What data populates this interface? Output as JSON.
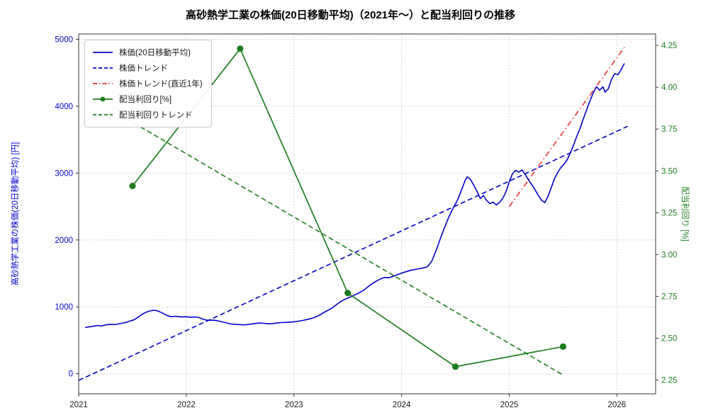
{
  "chart_data": {
    "type": "line",
    "title": "高砂熱学工業の株価(20日移動平均)（2021年～）と配当利回りの推移",
    "xlabel": "",
    "ylabel_left": "高砂熱学工業の株価(20日移動平均) [円]",
    "ylabel_right": "配当利回り [%]",
    "xlim": [
      2021.0,
      2026.36
    ],
    "ylim_left": [
      -300,
      5080
    ],
    "ylim_right": [
      2.168,
      4.318
    ],
    "grid": "dotted",
    "legend_position": "upper-left",
    "colors": {
      "blue": "#0000cd",
      "red": "#e8312a",
      "green": "#1e7d1e",
      "grid": "#c0c0c0",
      "tick": "#1a1a1a"
    },
    "x_ticks": [
      {
        "v": 2021,
        "label": "2021"
      },
      {
        "v": 2022,
        "label": "2022"
      },
      {
        "v": 2023,
        "label": "2023"
      },
      {
        "v": 2024,
        "label": "2024"
      },
      {
        "v": 2025,
        "label": "2025"
      },
      {
        "v": 2026,
        "label": "2026"
      }
    ],
    "y_ticks_left": [
      {
        "v": 0,
        "label": "0"
      },
      {
        "v": 1000,
        "label": "1000"
      },
      {
        "v": 2000,
        "label": "2000"
      },
      {
        "v": 3000,
        "label": "3000"
      },
      {
        "v": 4000,
        "label": "4000"
      },
      {
        "v": 5000,
        "label": "5000"
      }
    ],
    "y_ticks_right": [
      {
        "v": 2.25,
        "label": "2.25"
      },
      {
        "v": 2.5,
        "label": "2.50"
      },
      {
        "v": 2.75,
        "label": "2.75"
      },
      {
        "v": 3.0,
        "label": "3.00"
      },
      {
        "v": 3.25,
        "label": "3.25"
      },
      {
        "v": 3.5,
        "label": "3.50"
      },
      {
        "v": 3.75,
        "label": "3.75"
      },
      {
        "v": 4.0,
        "label": "4.00"
      },
      {
        "v": 4.25,
        "label": "4.25"
      }
    ],
    "series": [
      {
        "name": "price_ma20",
        "label": "株価(20日移動平均)",
        "axis": "left",
        "style": "solid",
        "color_key": "blue",
        "width": 1.6,
        "points": [
          [
            2021.06,
            690
          ],
          [
            2021.09,
            700
          ],
          [
            2021.12,
            705
          ],
          [
            2021.15,
            715
          ],
          [
            2021.18,
            722
          ],
          [
            2021.21,
            712
          ],
          [
            2021.24,
            726
          ],
          [
            2021.27,
            735
          ],
          [
            2021.3,
            740
          ],
          [
            2021.33,
            733
          ],
          [
            2021.36,
            742
          ],
          [
            2021.4,
            755
          ],
          [
            2021.44,
            768
          ],
          [
            2021.48,
            790
          ],
          [
            2021.52,
            810
          ],
          [
            2021.56,
            855
          ],
          [
            2021.6,
            900
          ],
          [
            2021.64,
            928
          ],
          [
            2021.68,
            945
          ],
          [
            2021.71,
            950
          ],
          [
            2021.74,
            935
          ],
          [
            2021.78,
            905
          ],
          [
            2021.82,
            872
          ],
          [
            2021.86,
            852
          ],
          [
            2021.9,
            860
          ],
          [
            2021.93,
            853
          ],
          [
            2021.96,
            848
          ],
          [
            2022.0,
            852
          ],
          [
            2022.04,
            845
          ],
          [
            2022.08,
            850
          ],
          [
            2022.12,
            838
          ],
          [
            2022.16,
            812
          ],
          [
            2022.2,
            798
          ],
          [
            2022.24,
            802
          ],
          [
            2022.28,
            795
          ],
          [
            2022.32,
            780
          ],
          [
            2022.36,
            765
          ],
          [
            2022.4,
            748
          ],
          [
            2022.44,
            740
          ],
          [
            2022.48,
            736
          ],
          [
            2022.52,
            732
          ],
          [
            2022.56,
            734
          ],
          [
            2022.6,
            742
          ],
          [
            2022.64,
            752
          ],
          [
            2022.68,
            758
          ],
          [
            2022.72,
            754
          ],
          [
            2022.76,
            746
          ],
          [
            2022.8,
            750
          ],
          [
            2022.84,
            758
          ],
          [
            2022.88,
            764
          ],
          [
            2022.92,
            768
          ],
          [
            2022.96,
            772
          ],
          [
            2023.0,
            776
          ],
          [
            2023.04,
            786
          ],
          [
            2023.08,
            796
          ],
          [
            2023.12,
            810
          ],
          [
            2023.16,
            826
          ],
          [
            2023.2,
            848
          ],
          [
            2023.24,
            880
          ],
          [
            2023.28,
            918
          ],
          [
            2023.32,
            952
          ],
          [
            2023.36,
            990
          ],
          [
            2023.4,
            1040
          ],
          [
            2023.44,
            1085
          ],
          [
            2023.48,
            1118
          ],
          [
            2023.52,
            1145
          ],
          [
            2023.56,
            1175
          ],
          [
            2023.6,
            1205
          ],
          [
            2023.64,
            1240
          ],
          [
            2023.68,
            1290
          ],
          [
            2023.72,
            1340
          ],
          [
            2023.76,
            1380
          ],
          [
            2023.8,
            1415
          ],
          [
            2023.84,
            1440
          ],
          [
            2023.88,
            1435
          ],
          [
            2023.92,
            1455
          ],
          [
            2023.96,
            1480
          ],
          [
            2024.0,
            1505
          ],
          [
            2024.04,
            1525
          ],
          [
            2024.08,
            1545
          ],
          [
            2024.12,
            1558
          ],
          [
            2024.16,
            1570
          ],
          [
            2024.2,
            1582
          ],
          [
            2024.24,
            1600
          ],
          [
            2024.28,
            1680
          ],
          [
            2024.32,
            1840
          ],
          [
            2024.36,
            2020
          ],
          [
            2024.4,
            2190
          ],
          [
            2024.44,
            2350
          ],
          [
            2024.48,
            2480
          ],
          [
            2024.52,
            2600
          ],
          [
            2024.56,
            2760
          ],
          [
            2024.59,
            2890
          ],
          [
            2024.61,
            2945
          ],
          [
            2024.64,
            2905
          ],
          [
            2024.67,
            2820
          ],
          [
            2024.7,
            2730
          ],
          [
            2024.73,
            2620
          ],
          [
            2024.76,
            2665
          ],
          [
            2024.79,
            2590
          ],
          [
            2024.82,
            2545
          ],
          [
            2024.85,
            2565
          ],
          [
            2024.88,
            2525
          ],
          [
            2024.91,
            2560
          ],
          [
            2024.94,
            2625
          ],
          [
            2024.97,
            2720
          ],
          [
            2025.0,
            2870
          ],
          [
            2025.03,
            2990
          ],
          [
            2025.06,
            3040
          ],
          [
            2025.09,
            3015
          ],
          [
            2025.12,
            3048
          ],
          [
            2025.15,
            2975
          ],
          [
            2025.18,
            2895
          ],
          [
            2025.21,
            2825
          ],
          [
            2025.24,
            2750
          ],
          [
            2025.27,
            2665
          ],
          [
            2025.3,
            2595
          ],
          [
            2025.33,
            2558
          ],
          [
            2025.36,
            2650
          ],
          [
            2025.39,
            2780
          ],
          [
            2025.42,
            2915
          ],
          [
            2025.45,
            3010
          ],
          [
            2025.48,
            3085
          ],
          [
            2025.51,
            3135
          ],
          [
            2025.54,
            3205
          ],
          [
            2025.57,
            3310
          ],
          [
            2025.6,
            3430
          ],
          [
            2025.63,
            3560
          ],
          [
            2025.66,
            3680
          ],
          [
            2025.69,
            3820
          ],
          [
            2025.72,
            3950
          ],
          [
            2025.75,
            4080
          ],
          [
            2025.78,
            4200
          ],
          [
            2025.81,
            4290
          ],
          [
            2025.84,
            4240
          ],
          [
            2025.87,
            4290
          ],
          [
            2025.89,
            4210
          ],
          [
            2025.92,
            4260
          ],
          [
            2025.95,
            4400
          ],
          [
            2025.98,
            4490
          ],
          [
            2026.01,
            4470
          ],
          [
            2026.04,
            4550
          ],
          [
            2026.07,
            4640
          ]
        ]
      },
      {
        "name": "price_trend",
        "label": "株価トレンド",
        "axis": "left",
        "style": "dashed",
        "color_key": "blue",
        "width": 1.6,
        "points": [
          [
            2021.0,
            -100
          ],
          [
            2026.1,
            3700
          ]
        ]
      },
      {
        "name": "price_trend_recent_1y",
        "label": "株価トレンド(直近1年)",
        "axis": "left",
        "style": "dashdot",
        "color_key": "red",
        "width": 1.6,
        "points": [
          [
            2025.0,
            2500
          ],
          [
            2026.07,
            4880
          ]
        ]
      },
      {
        "name": "dividend_yield",
        "label": "配当利回り[%]",
        "axis": "right",
        "style": "solid",
        "marker": "circle",
        "color_key": "green",
        "width": 1.7,
        "points": [
          [
            2021.5,
            3.41
          ],
          [
            2022.5,
            4.23
          ],
          [
            2023.5,
            2.77
          ],
          [
            2024.5,
            2.33
          ],
          [
            2025.5,
            2.45
          ]
        ]
      },
      {
        "name": "yield_trend",
        "label": "配当利回りトレンド",
        "axis": "right",
        "style": "dashed",
        "color_key": "green",
        "width": 1.6,
        "points": [
          [
            2021.45,
            3.81
          ],
          [
            2025.5,
            2.28
          ]
        ]
      }
    ]
  }
}
